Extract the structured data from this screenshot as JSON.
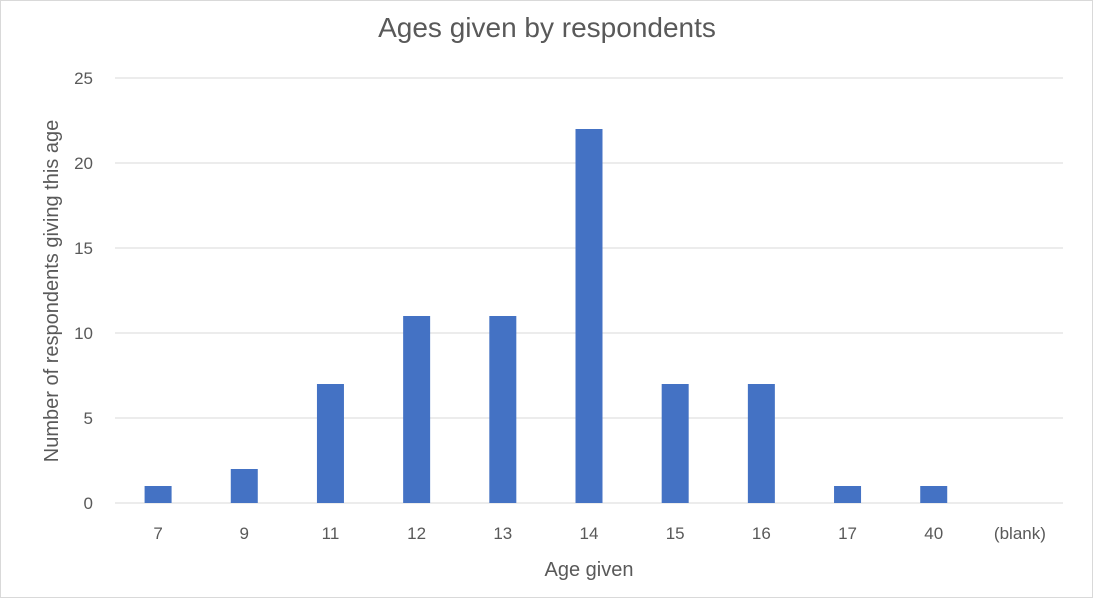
{
  "chart_data": {
    "type": "bar",
    "title": "Ages given by respondents",
    "xlabel": "Age given",
    "ylabel": "Number of respondents giving this age",
    "categories": [
      "7",
      "9",
      "11",
      "12",
      "13",
      "14",
      "15",
      "16",
      "17",
      "40",
      "(blank)"
    ],
    "values": [
      1,
      2,
      7,
      11,
      11,
      22,
      7,
      7,
      1,
      1,
      0
    ],
    "ylim": [
      0,
      25
    ],
    "yticks": [
      "0",
      "5",
      "10",
      "15",
      "20",
      "25"
    ],
    "grid": true,
    "legend": "none",
    "bar_color": "#4472c4"
  }
}
